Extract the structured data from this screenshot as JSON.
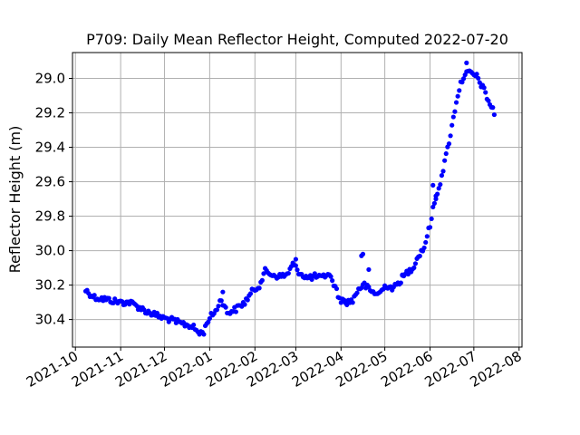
{
  "chart_data": {
    "type": "scatter",
    "title": "P709: Daily Mean Reflector Height, Computed 2022-07-20",
    "xlabel": "",
    "ylabel": "Reflector Height (m)",
    "y_inverted": true,
    "ylim": [
      30.56,
      28.85
    ],
    "xlim": [
      "2021-09-29",
      "2022-08-03"
    ],
    "grid": true,
    "marker_color": "#0000ff",
    "y_ticks": [
      29.0,
      29.2,
      29.4,
      29.6,
      29.8,
      30.0,
      30.2,
      30.4
    ],
    "y_tick_labels": [
      "29.0",
      "29.2",
      "29.4",
      "29.6",
      "29.8",
      "30.0",
      "30.2",
      "30.4"
    ],
    "x_ticks": [
      "2021-10-01",
      "2021-11-01",
      "2021-12-01",
      "2022-01-01",
      "2022-02-01",
      "2022-03-01",
      "2022-04-01",
      "2022-05-01",
      "2022-06-01",
      "2022-07-01",
      "2022-08-01"
    ],
    "x_tick_labels": [
      "2021-10",
      "2021-11",
      "2021-12",
      "2022-01",
      "2022-02",
      "2022-03",
      "2022-04",
      "2022-05",
      "2022-06",
      "2022-07",
      "2022-08"
    ],
    "anchors": [
      [
        "2021-10-08",
        30.23
      ],
      [
        "2021-10-14",
        30.27
      ],
      [
        "2021-10-20",
        30.28
      ],
      [
        "2021-10-26",
        30.29
      ],
      [
        "2021-11-01",
        30.3
      ],
      [
        "2021-11-07",
        30.3
      ],
      [
        "2021-11-12",
        30.32
      ],
      [
        "2021-11-18",
        30.35
      ],
      [
        "2021-11-24",
        30.37
      ],
      [
        "2021-11-30",
        30.39
      ],
      [
        "2021-12-05",
        30.4
      ],
      [
        "2021-12-11",
        30.42
      ],
      [
        "2021-12-16",
        30.43
      ],
      [
        "2021-12-20",
        30.44
      ],
      [
        "2021-12-25",
        30.48
      ],
      [
        "2021-12-28",
        30.47
      ],
      [
        "2021-12-31",
        30.4
      ],
      [
        "2022-01-05",
        30.35
      ],
      [
        "2022-01-09",
        30.28
      ],
      [
        "2022-01-13",
        30.36
      ],
      [
        "2022-01-19",
        30.34
      ],
      [
        "2022-01-25",
        30.3
      ],
      [
        "2022-01-30",
        30.24
      ],
      [
        "2022-02-04",
        30.2
      ],
      [
        "2022-02-08",
        30.12
      ],
      [
        "2022-02-13",
        30.14
      ],
      [
        "2022-02-18",
        30.15
      ],
      [
        "2022-02-23",
        30.14
      ],
      [
        "2022-02-27",
        30.08
      ],
      [
        "2022-03-04",
        30.13
      ],
      [
        "2022-03-09",
        30.16
      ],
      [
        "2022-03-14",
        30.15
      ],
      [
        "2022-03-19",
        30.16
      ],
      [
        "2022-03-23",
        30.13
      ],
      [
        "2022-03-27",
        30.19
      ],
      [
        "2022-03-31",
        30.28
      ],
      [
        "2022-04-04",
        30.3
      ],
      [
        "2022-04-09",
        30.29
      ],
      [
        "2022-04-13",
        30.22
      ],
      [
        "2022-04-17",
        30.2
      ],
      [
        "2022-04-22",
        30.24
      ],
      [
        "2022-04-27",
        30.25
      ],
      [
        "2022-05-02",
        30.2
      ],
      [
        "2022-05-07",
        30.22
      ],
      [
        "2022-05-12",
        30.17
      ],
      [
        "2022-05-16",
        30.13
      ],
      [
        "2022-05-20",
        30.1
      ],
      [
        "2022-05-24",
        30.03
      ],
      [
        "2022-05-28",
        29.98
      ],
      [
        "2022-06-01",
        29.85
      ],
      [
        "2022-06-04",
        29.72
      ],
      [
        "2022-06-08",
        29.6
      ],
      [
        "2022-06-12",
        29.45
      ],
      [
        "2022-06-16",
        29.28
      ],
      [
        "2022-06-19",
        29.13
      ],
      [
        "2022-06-22",
        29.03
      ],
      [
        "2022-06-25",
        28.97
      ],
      [
        "2022-06-29",
        28.97
      ],
      [
        "2022-07-03",
        28.99
      ],
      [
        "2022-07-07",
        29.05
      ],
      [
        "2022-07-11",
        29.13
      ],
      [
        "2022-07-15",
        29.2
      ]
    ],
    "outliers": [
      [
        "2022-04-15",
        30.03
      ],
      [
        "2022-04-16",
        30.02
      ],
      [
        "2022-04-20",
        30.11
      ],
      [
        "2022-06-26",
        28.91
      ],
      [
        "2022-06-03",
        29.62
      ],
      [
        "2022-06-05",
        29.7
      ],
      [
        "2022-01-10",
        30.24
      ],
      [
        "2022-03-01",
        30.05
      ],
      [
        "2022-05-13",
        30.14
      ]
    ]
  }
}
